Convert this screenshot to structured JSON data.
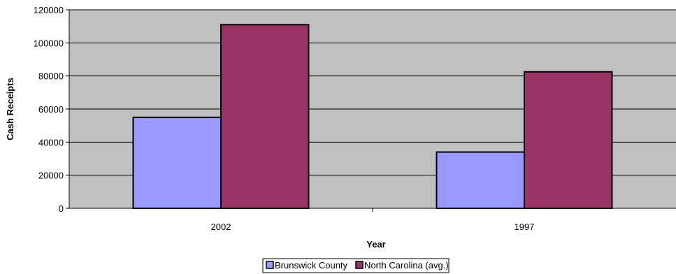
{
  "chart_data": {
    "type": "bar",
    "categories": [
      "2002",
      "1997"
    ],
    "series": [
      {
        "name": "Brunswick County",
        "values": [
          55000,
          34000
        ],
        "color": "#9999ff"
      },
      {
        "name": "North Carolina (avg.)",
        "values": [
          111000,
          82500
        ],
        "color": "#993366"
      }
    ],
    "xlabel": "Year",
    "ylabel": "Cash Receipts",
    "ylim": [
      0,
      120000
    ],
    "yticks": [
      "0",
      "20000",
      "40000",
      "60000",
      "80000",
      "100000",
      "120000"
    ],
    "grid": true,
    "legend_position": "bottom",
    "plot_background": "#c0c0c0"
  }
}
